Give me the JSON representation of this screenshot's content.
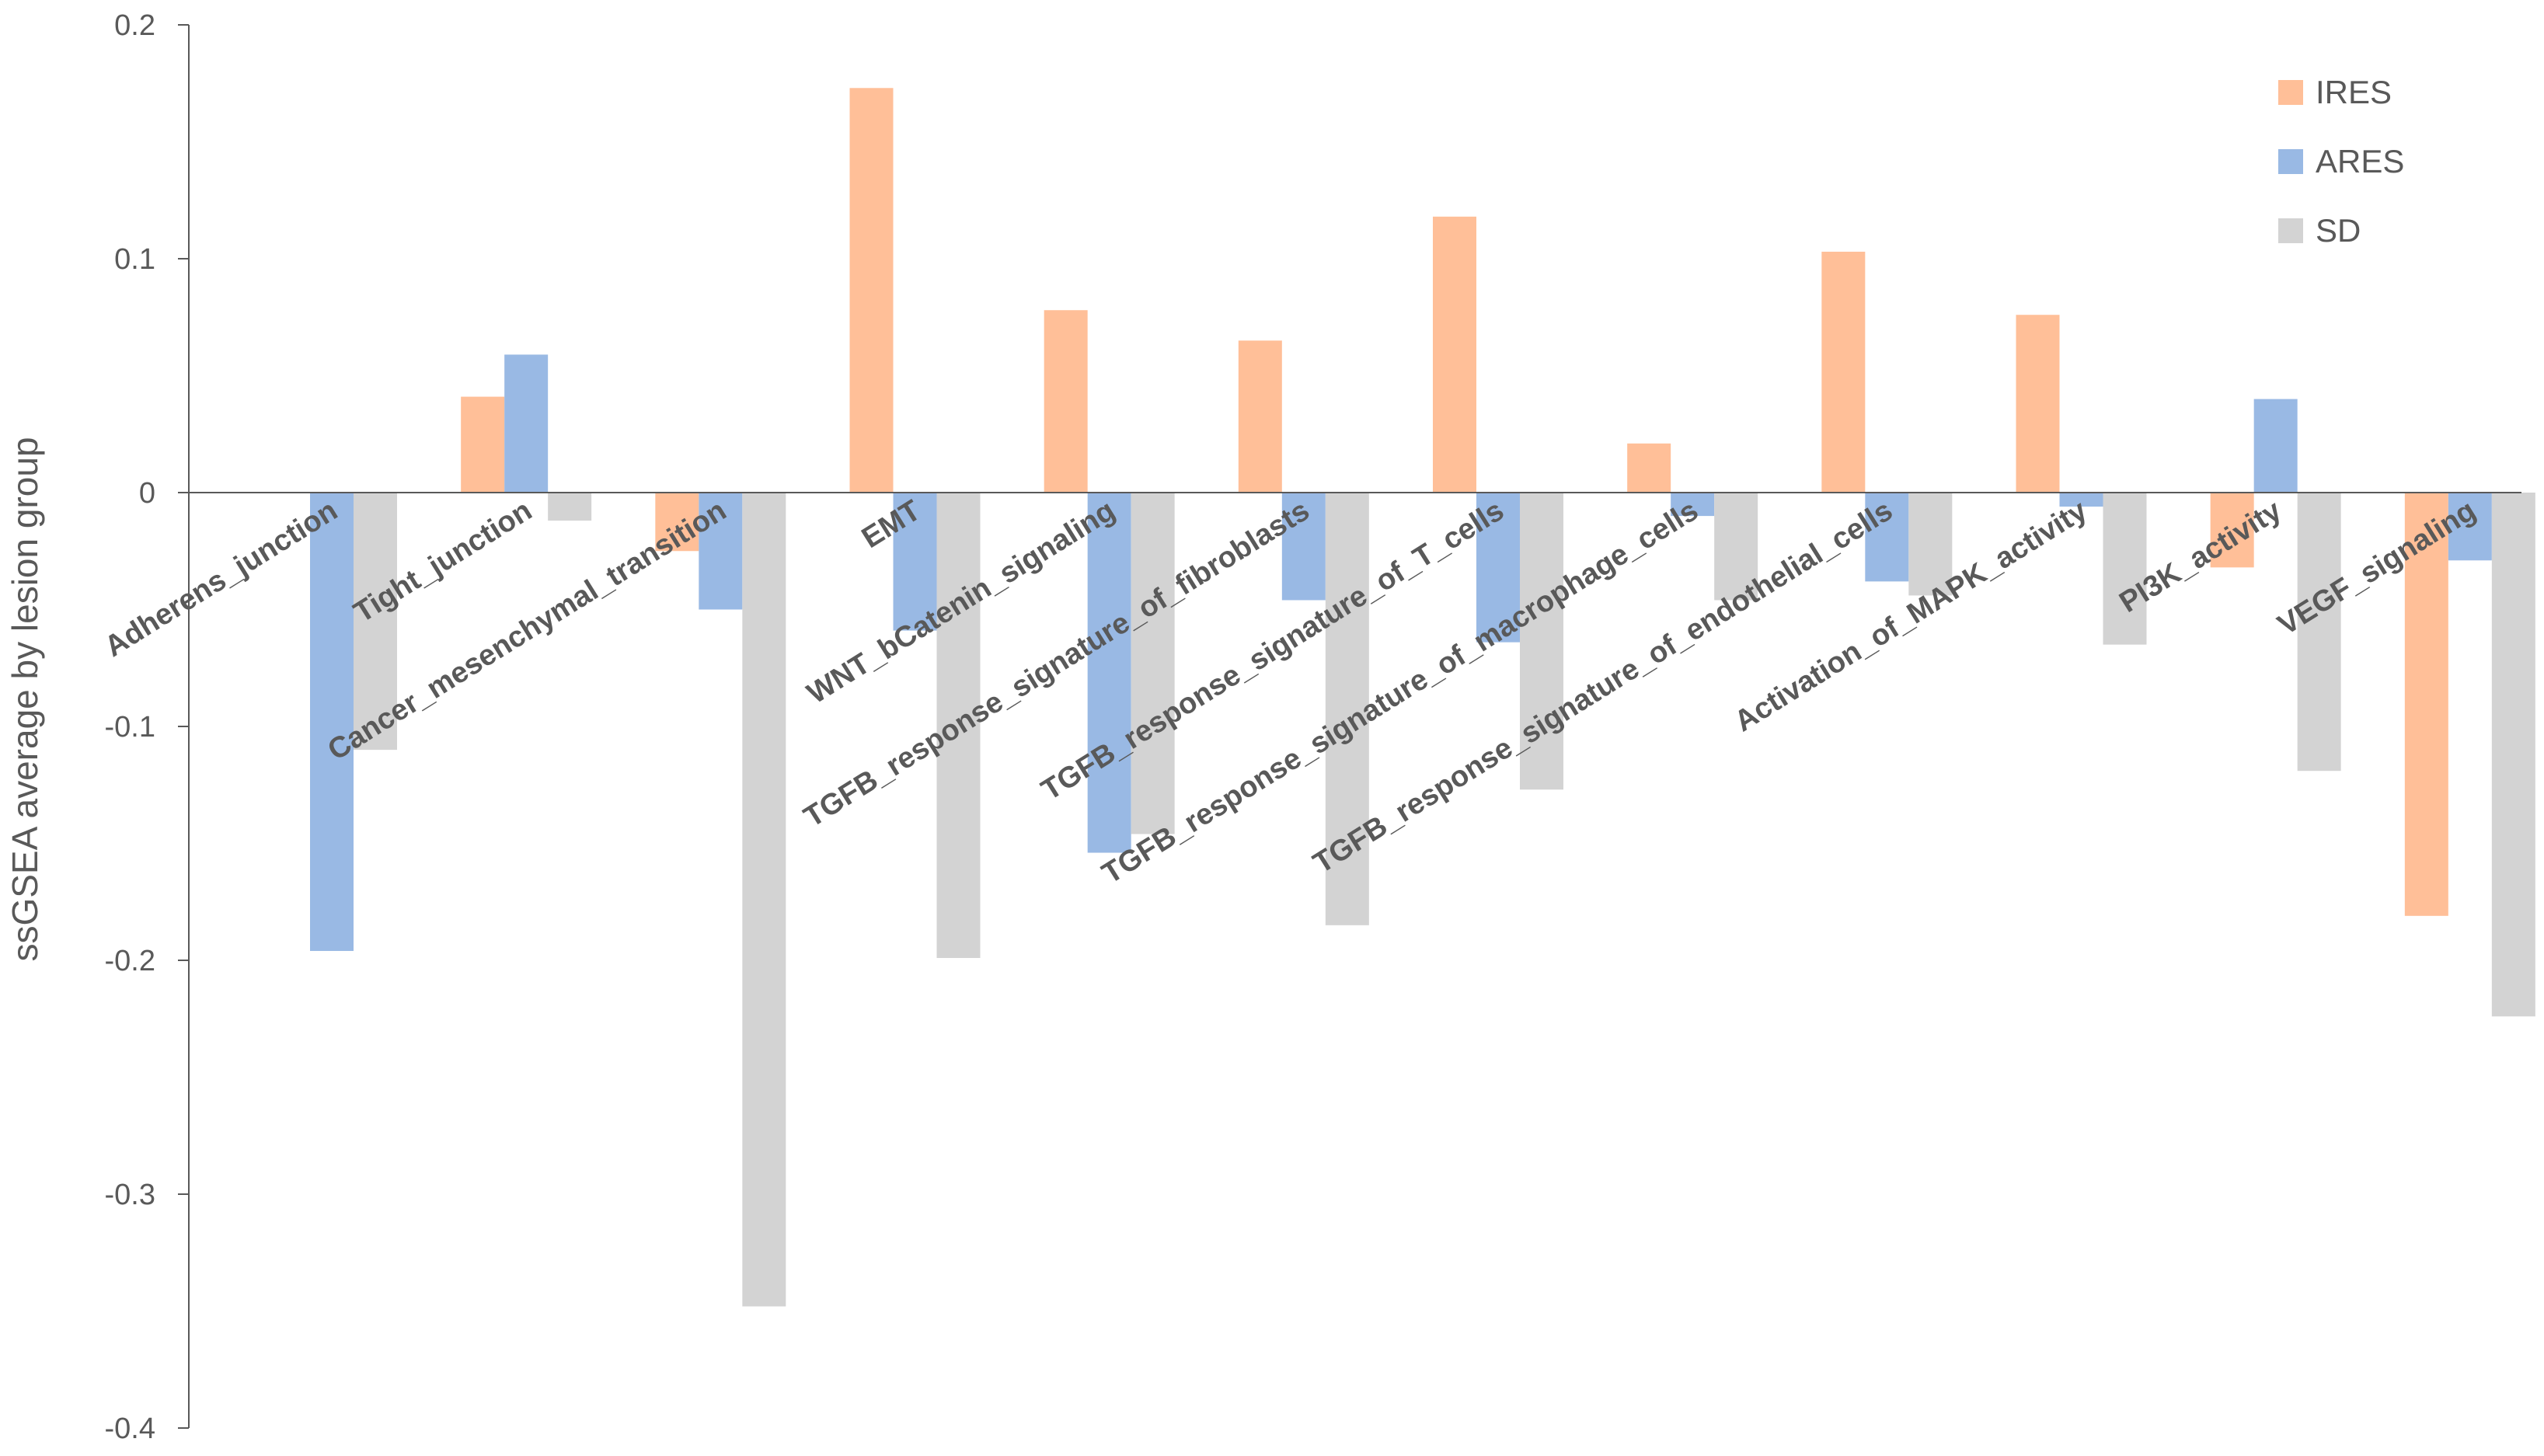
{
  "chart_data": {
    "type": "bar",
    "ylabel": "ssGSEA average by lesion group",
    "xlabel": "",
    "ylim": [
      -0.4,
      0.2
    ],
    "yticks": [
      0.2,
      0.1,
      0,
      -0.1,
      -0.2,
      -0.3,
      -0.4
    ],
    "ytick_labels": [
      "0.2",
      "0.1",
      "0",
      "-0.1",
      "-0.2",
      "-0.3",
      "-0.4"
    ],
    "grid": false,
    "legend_position": "top-right",
    "categories": [
      "Adherens_junction",
      "Tight_junction",
      "Cancer_mesenchymal_transition",
      "EMT",
      "WNT_bCatenin_signaling",
      "TGFB_response_signature_of_fibroblasts",
      "TGFB_response_signature_of_T_cells",
      "TGFB_response_signature_of_macrophage_cells",
      "TGFB_response_signature_of_endothelial_cells",
      "Activation_of_MAPK_activity",
      "PI3K_activity",
      "VEGF_signaling"
    ],
    "series": [
      {
        "name": "IRES",
        "color": "#FFBF98",
        "values": [
          0,
          0.041,
          -0.025,
          0.173,
          0.078,
          0.065,
          0.118,
          0.021,
          0.103,
          0.076,
          -0.032,
          -0.181
        ]
      },
      {
        "name": "ARES",
        "color": "#99B9E4",
        "values": [
          -0.196,
          0.059,
          -0.05,
          -0.059,
          -0.154,
          -0.046,
          -0.064,
          -0.01,
          -0.038,
          -0.006,
          0.04,
          -0.029
        ]
      },
      {
        "name": "SD",
        "color": "#D3D3D3",
        "values": [
          -0.11,
          -0.012,
          -0.348,
          -0.199,
          -0.146,
          -0.185,
          -0.127,
          -0.046,
          -0.044,
          -0.065,
          -0.119,
          -0.224
        ]
      }
    ]
  }
}
